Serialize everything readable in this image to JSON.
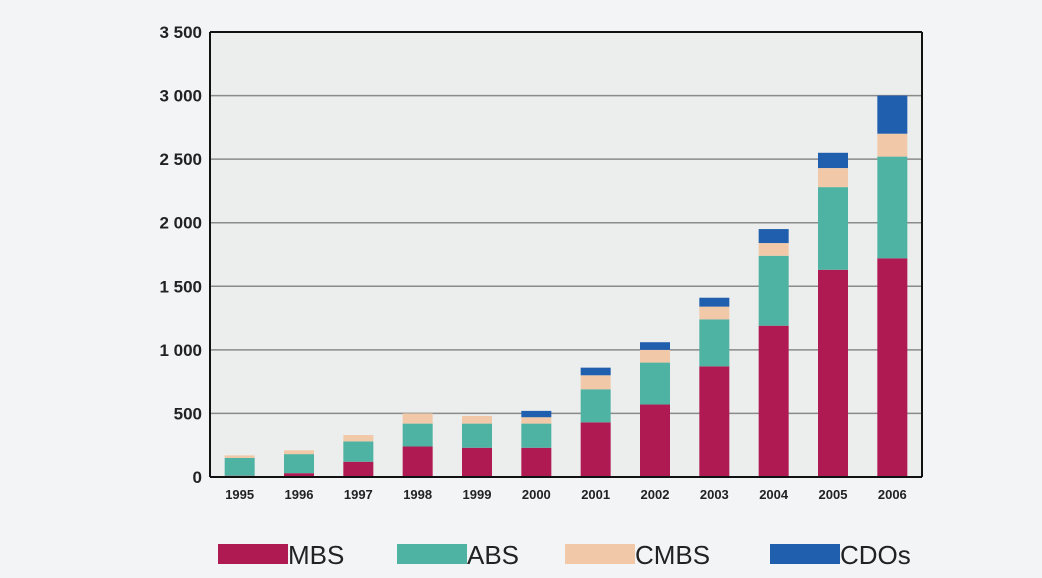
{
  "chart_data": {
    "type": "bar",
    "stacked": true,
    "title": "",
    "xlabel": "",
    "ylabel": "",
    "ylim": [
      0,
      3500
    ],
    "yticks": [
      0,
      500,
      1000,
      1500,
      2000,
      2500,
      3000,
      3500
    ],
    "ytick_labels": [
      "0",
      "500",
      "1 000",
      "1 500",
      "2 000",
      "2 500",
      "3 000",
      "3 500"
    ],
    "grid": true,
    "legend_position": "bottom",
    "categories": [
      "1995",
      "1996",
      "1997",
      "1998",
      "1999",
      "2000",
      "2001",
      "2002",
      "2003",
      "2004",
      "2005",
      "2006"
    ],
    "series": [
      {
        "name": "MBS",
        "color": "#b01a52",
        "values": [
          10,
          30,
          120,
          240,
          230,
          230,
          430,
          570,
          870,
          1190,
          1630,
          1720
        ]
      },
      {
        "name": "ABS",
        "color": "#4fb3a3",
        "values": [
          140,
          150,
          160,
          180,
          190,
          190,
          260,
          330,
          370,
          550,
          650,
          800
        ]
      },
      {
        "name": "CMBS",
        "color": "#f2c9a8",
        "values": [
          20,
          30,
          50,
          80,
          60,
          50,
          110,
          100,
          100,
          100,
          150,
          180
        ]
      },
      {
        "name": "CDOs",
        "color": "#1f5fae",
        "values": [
          0,
          0,
          0,
          0,
          0,
          50,
          60,
          60,
          70,
          110,
          120,
          300
        ]
      }
    ]
  }
}
